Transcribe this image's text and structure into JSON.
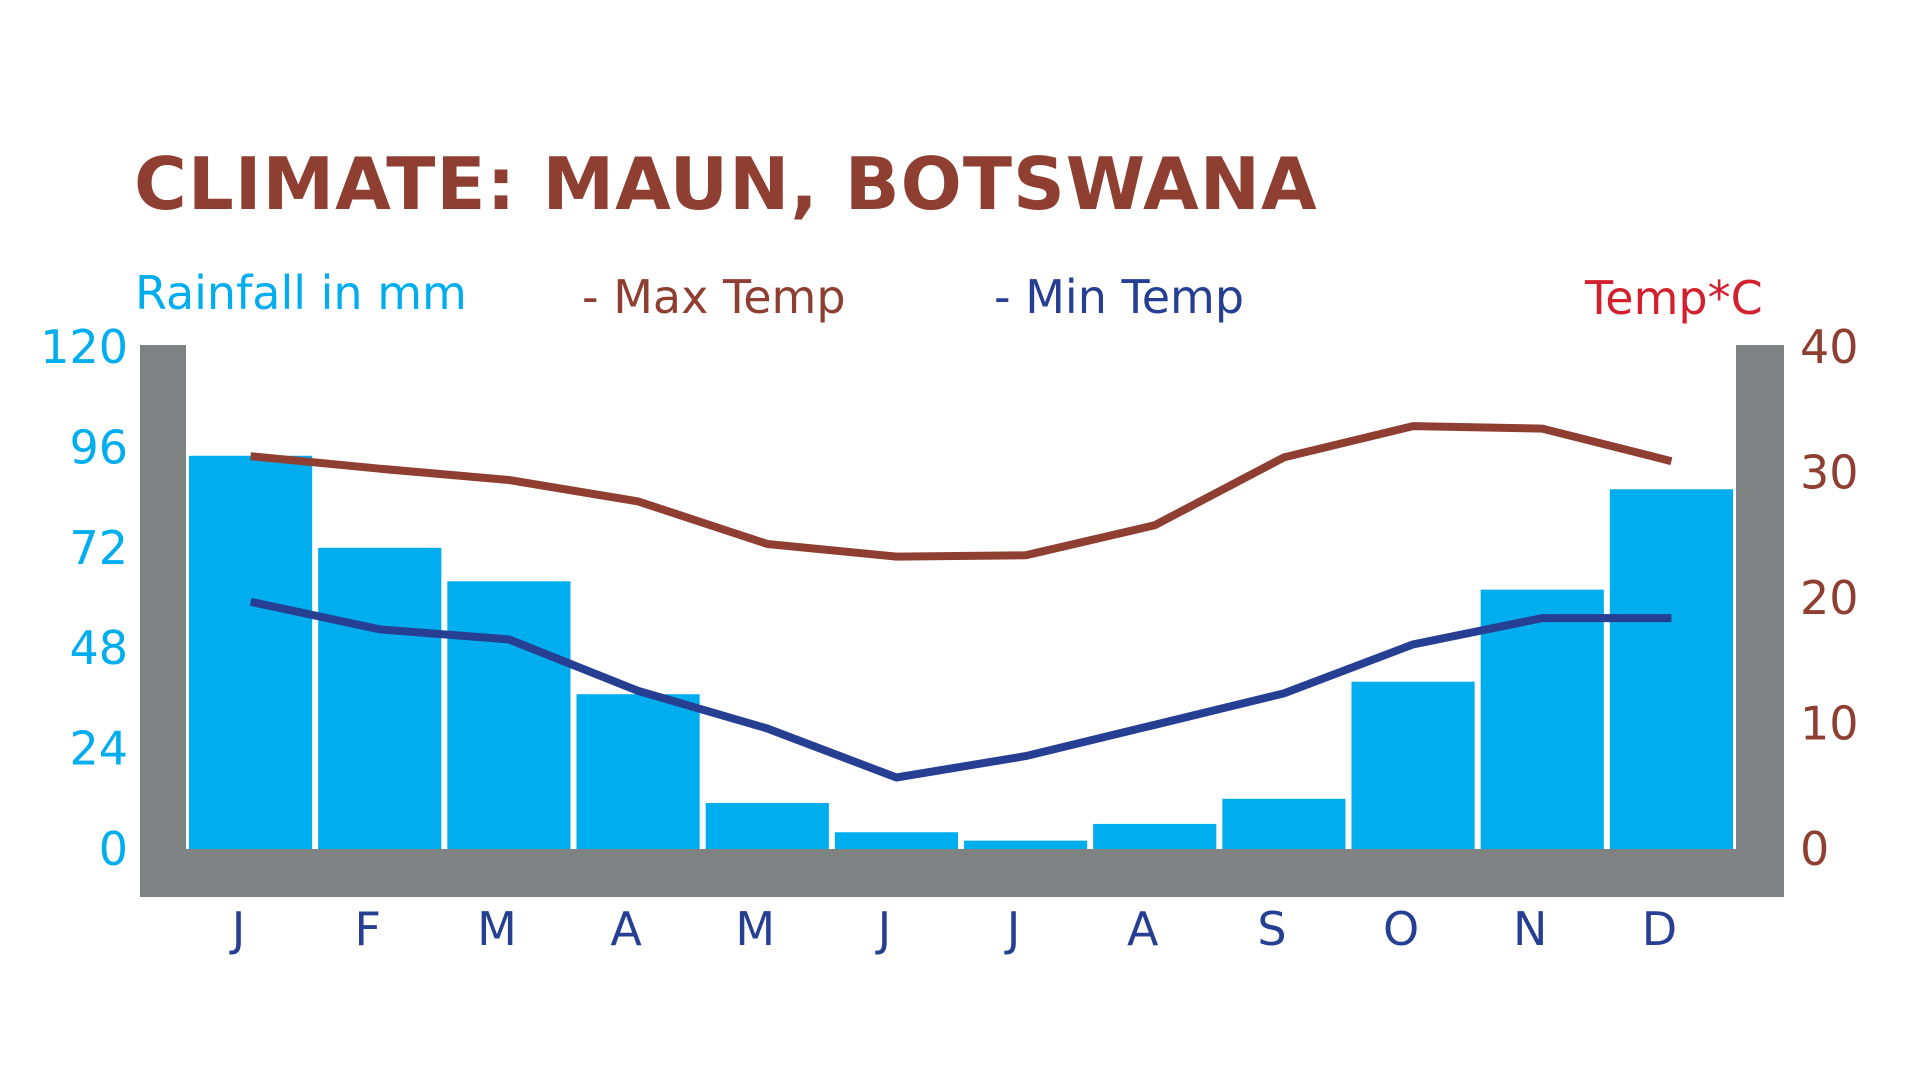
{
  "title": "CLIMATE: MAUN, BOTSWANA",
  "legend": {
    "rainfall_label": "Rainfall in mm",
    "max_label": "- Max Temp",
    "min_label": "- Min Temp",
    "temp_label": "Temp*C"
  },
  "colors": {
    "title": "#8e3f32",
    "rain_bar": "#00adef",
    "max_temp": "#8e3f32",
    "min_temp": "#263f93",
    "frame": "#7f8282",
    "temp_axis_label": "#d3202f",
    "month_labels": "#263f93"
  },
  "chart_data": {
    "type": "bar",
    "categories": [
      "J",
      "F",
      "M",
      "A",
      "M",
      "J",
      "J",
      "A",
      "S",
      "O",
      "N",
      "D"
    ],
    "series": [
      {
        "name": "Rainfall in mm",
        "type": "bar",
        "axis": "left",
        "values": [
          94,
          72,
          64,
          37,
          11,
          4,
          2,
          6,
          12,
          40,
          62,
          86
        ]
      },
      {
        "name": "Max Temp",
        "type": "line",
        "axis": "right",
        "values": [
          31.3,
          30.3,
          29.4,
          27.7,
          24.3,
          23.3,
          23.4,
          25.8,
          31.2,
          33.7,
          33.5,
          30.9
        ]
      },
      {
        "name": "Min Temp",
        "type": "line",
        "axis": "right",
        "values": [
          19.7,
          17.5,
          16.7,
          12.6,
          9.6,
          5.7,
          7.4,
          9.9,
          12.4,
          16.3,
          18.4,
          18.4
        ]
      }
    ],
    "y_left": {
      "label": "Rainfall in mm",
      "ticks": [
        0,
        24,
        48,
        72,
        96,
        120
      ],
      "range": [
        0,
        120
      ]
    },
    "y_right": {
      "label": "Temp*C",
      "ticks": [
        0,
        10,
        20,
        30,
        40
      ],
      "range": [
        0,
        40
      ]
    },
    "grid": false
  }
}
